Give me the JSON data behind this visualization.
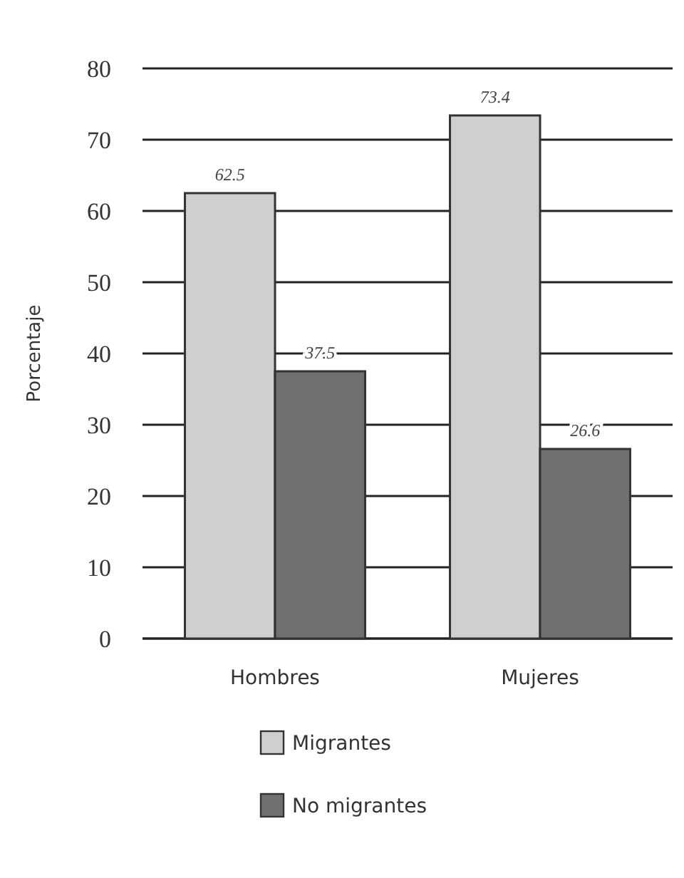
{
  "chart_data": {
    "type": "bar",
    "ylabel": "Porcentaje",
    "categories": [
      "Hombres",
      "Mujeres"
    ],
    "series": [
      {
        "name": "Migrantes",
        "color": "#cfcfcf",
        "values": [
          62.5,
          73.4
        ]
      },
      {
        "name": "No migrantes",
        "color": "#707070",
        "values": [
          37.5,
          26.6
        ]
      }
    ],
    "ylim": [
      0,
      80
    ],
    "yticks": [
      0,
      10,
      20,
      30,
      40,
      50,
      60,
      70,
      80
    ],
    "grid": "y",
    "legend": "bottom",
    "data_labels": true
  }
}
